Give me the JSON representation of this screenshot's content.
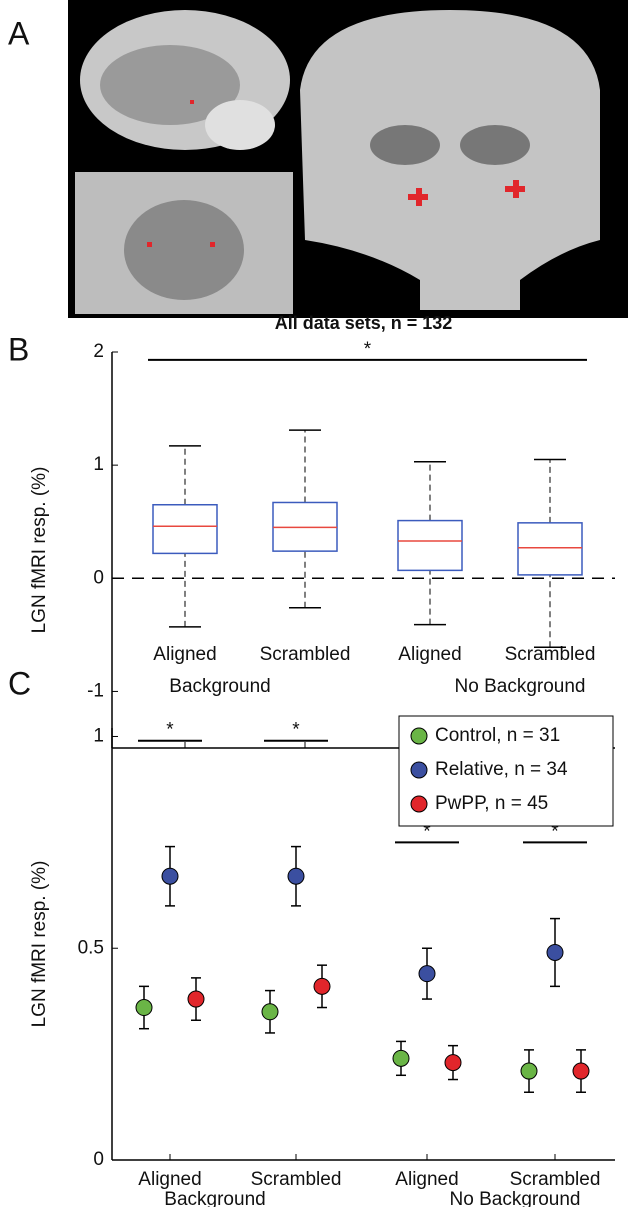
{
  "panels": [
    "A",
    "B",
    "C"
  ],
  "chart_data": [
    {
      "type": "box",
      "title": "All data sets, n = 132",
      "ylabel": "LGN fMRI resp. (%)",
      "categories": [
        "Aligned",
        "Scrambled",
        "Aligned",
        "Scrambled"
      ],
      "group_labels": [
        "Background",
        "No Background"
      ],
      "whislo": [
        -0.43,
        -0.26,
        -0.41,
        -0.61
      ],
      "q1": [
        0.22,
        0.24,
        0.07,
        0.03
      ],
      "median": [
        0.46,
        0.45,
        0.33,
        0.27
      ],
      "q3": [
        0.65,
        0.67,
        0.51,
        0.49
      ],
      "whishi": [
        1.17,
        1.31,
        1.03,
        1.05
      ],
      "color": "#3b5bbd",
      "median_color": "#e8483f",
      "ylim": [
        -1.5,
        2
      ],
      "yticks": [
        -1,
        0,
        1,
        2
      ],
      "reference_line": 0,
      "significance": [
        {
          "label": "*",
          "y": 1.93,
          "categories": [
            0,
            3
          ]
        }
      ]
    },
    {
      "type": "dot",
      "ylabel": "LGN fMRI resp. (%)",
      "categories": [
        "Aligned",
        "Scrambled",
        "Aligned",
        "Scrambled"
      ],
      "group_labels": [
        "Background",
        "No Background"
      ],
      "series": [
        {
          "name": "Control, n = 31",
          "color": "#6ab546",
          "values": [
            0.36,
            0.35,
            0.24,
            0.21
          ],
          "errors": [
            0.05,
            0.05,
            0.04,
            0.05
          ]
        },
        {
          "name": "Relative, n = 34",
          "color": "#3b4fa0",
          "values": [
            0.67,
            0.67,
            0.44,
            0.49
          ],
          "errors": [
            0.07,
            0.07,
            0.06,
            0.08
          ]
        },
        {
          "name": "PwPP, n = 45",
          "color": "#e1262b",
          "values": [
            0.38,
            0.41,
            0.23,
            0.21
          ],
          "errors": [
            0.05,
            0.05,
            0.04,
            0.05
          ]
        }
      ],
      "ylim": [
        0,
        1.02
      ],
      "yticks": [
        0,
        0.5,
        1
      ],
      "legend": "top right",
      "significance": [
        {
          "label": "*",
          "y": 0.99,
          "categories": [
            0,
            0
          ]
        },
        {
          "label": "*",
          "y": 0.99,
          "categories": [
            1,
            1
          ]
        },
        {
          "label": "*",
          "y": 0.75,
          "categories": [
            2,
            2
          ]
        },
        {
          "label": "*",
          "y": 0.75,
          "categories": [
            3,
            3
          ]
        }
      ]
    }
  ]
}
